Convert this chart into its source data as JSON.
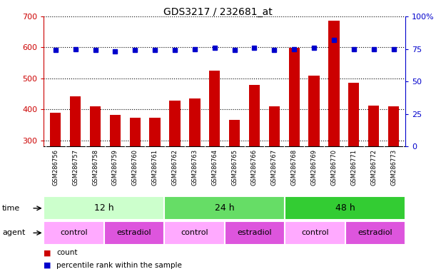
{
  "title": "GDS3217 / 232681_at",
  "samples": [
    "GSM286756",
    "GSM286757",
    "GSM286758",
    "GSM286759",
    "GSM286760",
    "GSM286761",
    "GSM286762",
    "GSM286763",
    "GSM286764",
    "GSM286765",
    "GSM286766",
    "GSM286767",
    "GSM286768",
    "GSM286769",
    "GSM286770",
    "GSM286771",
    "GSM286772",
    "GSM286773"
  ],
  "counts": [
    390,
    443,
    410,
    382,
    373,
    373,
    428,
    435,
    524,
    367,
    480,
    410,
    598,
    510,
    686,
    486,
    412,
    410
  ],
  "percentile_ranks": [
    74,
    75,
    74,
    73,
    74,
    74,
    74,
    75,
    76,
    74,
    76,
    74,
    75,
    76,
    82,
    75,
    75,
    75
  ],
  "ylim_left": [
    280,
    700
  ],
  "ylim_right": [
    0,
    100
  ],
  "yticks_left": [
    300,
    400,
    500,
    600,
    700
  ],
  "yticks_right": [
    0,
    25,
    50,
    75,
    100
  ],
  "bar_color": "#cc0000",
  "dot_color": "#0000cc",
  "time_groups": [
    {
      "label": "12 h",
      "start": 0,
      "end": 6,
      "color": "#ccffcc"
    },
    {
      "label": "24 h",
      "start": 6,
      "end": 12,
      "color": "#66dd66"
    },
    {
      "label": "48 h",
      "start": 12,
      "end": 18,
      "color": "#33cc33"
    }
  ],
  "agent_groups": [
    {
      "label": "control",
      "start": 0,
      "end": 3,
      "color": "#ffaaff"
    },
    {
      "label": "estradiol",
      "start": 3,
      "end": 6,
      "color": "#dd55dd"
    },
    {
      "label": "control",
      "start": 6,
      "end": 9,
      "color": "#ffaaff"
    },
    {
      "label": "estradiol",
      "start": 9,
      "end": 12,
      "color": "#dd55dd"
    },
    {
      "label": "control",
      "start": 12,
      "end": 15,
      "color": "#ffaaff"
    },
    {
      "label": "estradiol",
      "start": 15,
      "end": 18,
      "color": "#dd55dd"
    }
  ],
  "legend_count_label": "count",
  "legend_pct_label": "percentile rank within the sample",
  "time_label": "time",
  "agent_label": "agent",
  "left_axis_color": "#cc0000",
  "right_axis_color": "#0000cc",
  "tick_label_bg": "#d8d8d8"
}
